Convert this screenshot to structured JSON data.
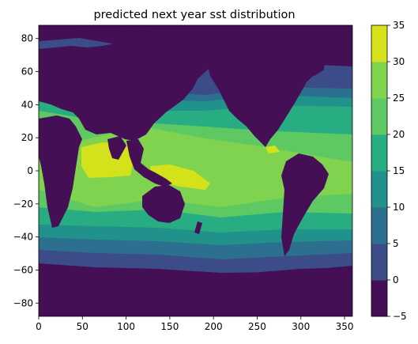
{
  "chart_data": {
    "type": "heatmap",
    "title": "predicted next year sst distribution",
    "xlabel": "",
    "ylabel": "",
    "x_ticks": [
      0,
      50,
      100,
      150,
      200,
      250,
      300,
      350
    ],
    "y_ticks": [
      80,
      60,
      40,
      20,
      0,
      -20,
      -40,
      -60,
      -80
    ],
    "xlim": [
      0,
      359
    ],
    "ylim": [
      -88,
      88
    ],
    "colorbar": {
      "levels": [
        -5,
        0,
        5,
        10,
        15,
        20,
        25,
        30,
        35
      ],
      "colors": [
        "#440f55",
        "#3b4c88",
        "#2c6f8e",
        "#21918c",
        "#27ad81",
        "#5ec962",
        "#7fd34e",
        "#d4e21b"
      ],
      "placement": "right"
    },
    "land_color": "#440f55",
    "grid": false
  }
}
